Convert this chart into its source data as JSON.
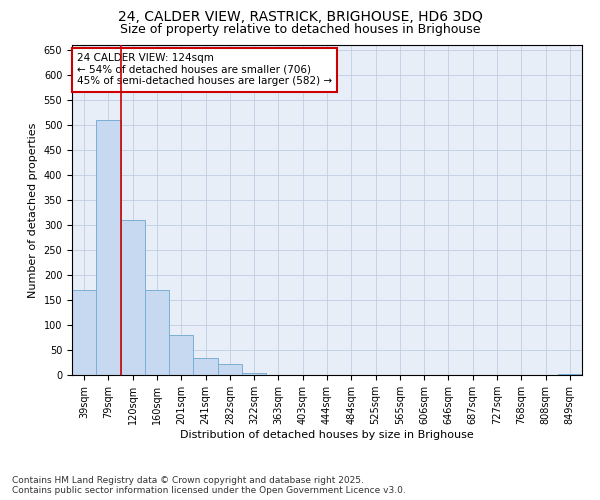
{
  "title_line1": "24, CALDER VIEW, RASTRICK, BRIGHOUSE, HD6 3DQ",
  "title_line2": "Size of property relative to detached houses in Brighouse",
  "xlabel": "Distribution of detached houses by size in Brighouse",
  "ylabel": "Number of detached properties",
  "categories": [
    "39sqm",
    "79sqm",
    "120sqm",
    "160sqm",
    "201sqm",
    "241sqm",
    "282sqm",
    "322sqm",
    "363sqm",
    "403sqm",
    "444sqm",
    "484sqm",
    "525sqm",
    "565sqm",
    "606sqm",
    "646sqm",
    "687sqm",
    "727sqm",
    "768sqm",
    "808sqm",
    "849sqm"
  ],
  "values": [
    170,
    510,
    310,
    170,
    80,
    35,
    22,
    5,
    0,
    0,
    0,
    0,
    0,
    0,
    0,
    0,
    0,
    0,
    0,
    0,
    3
  ],
  "bar_color": "#c6d9f0",
  "bar_edgecolor": "#7bafd4",
  "bar_linewidth": 0.7,
  "vline_color": "#cc0000",
  "vline_x_index": 2,
  "annotation_text": "24 CALDER VIEW: 124sqm\n← 54% of detached houses are smaller (706)\n45% of semi-detached houses are larger (582) →",
  "annotation_box_color": "#ffffff",
  "annotation_box_edgecolor": "#cc0000",
  "annotation_fontsize": 7.5,
  "ylim": [
    0,
    660
  ],
  "yticks": [
    0,
    50,
    100,
    150,
    200,
    250,
    300,
    350,
    400,
    450,
    500,
    550,
    600,
    650
  ],
  "background_color": "#e8eef8",
  "footer_line1": "Contains HM Land Registry data © Crown copyright and database right 2025.",
  "footer_line2": "Contains public sector information licensed under the Open Government Licence v3.0.",
  "footer_fontsize": 6.5,
  "title_fontsize1": 10,
  "title_fontsize2": 9,
  "xlabel_fontsize": 8,
  "ylabel_fontsize": 8,
  "tick_fontsize": 7,
  "grid_color": "#b8c8e0",
  "font_family": "DejaVu Sans"
}
